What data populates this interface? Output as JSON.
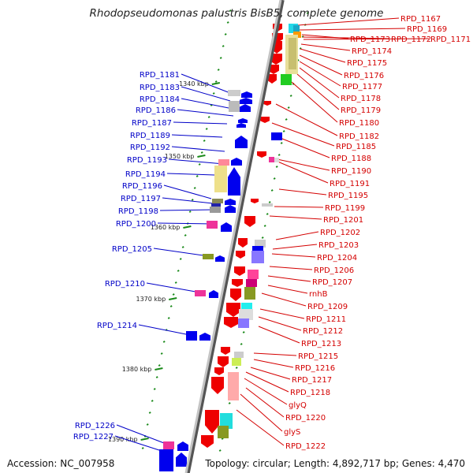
{
  "title": "Rhodopseudomonas palustris BisB5, complete genome",
  "footer": {
    "accession": "Accession: NC_007958",
    "summary": "Topology: circular; Length: 4,892,717 bp; Genes: 4,470"
  },
  "colors": {
    "backbone": "#888888",
    "left_label": "#0000c8",
    "right_label": "#d40000",
    "tick": "#1a8a1a",
    "forward_gene": "#0000ee",
    "reverse_gene": "#ee0000"
  },
  "ticks": [
    "1340 kbp",
    "1350 kbp",
    "1360 kbp",
    "1370 kbp",
    "1380 kbp",
    "1390 kbp"
  ],
  "left_labels": [
    "RPD_1181",
    "RPD_1183",
    "RPD_1184",
    "RPD_1186",
    "RPD_1187",
    "RPD_1189",
    "RPD_1192",
    "RPD_1193",
    "RPD_1194",
    "RPD_1196",
    "RPD_1197",
    "RPD_1198",
    "RPD_1200",
    "RPD_1205",
    "RPD_1210",
    "RPD_1214",
    "RPD_1226",
    "RPD_1227"
  ],
  "right_labels": [
    "RPD_1167",
    "RPD_1169",
    "RPD_1173",
    "RPD_1172",
    "RPD_1171",
    "RPD_1174",
    "RPD_1175",
    "RPD_1176",
    "RPD_1177",
    "RPD_1178",
    "RPD_1179",
    "RPD_1180",
    "RPD_1182",
    "RPD_1185",
    "RPD_1188",
    "RPD_1190",
    "RPD_1191",
    "RPD_1195",
    "RPD_1199",
    "RPD_1201",
    "RPD_1202",
    "RPD_1203",
    "RPD_1204",
    "RPD_1206",
    "RPD_1207",
    "rnhB",
    "RPD_1209",
    "RPD_1211",
    "RPD_1212",
    "RPD_1213",
    "RPD_1215",
    "RPD_1216",
    "RPD_1217",
    "RPD_1218",
    "glyQ",
    "RPD_1220",
    "glyS",
    "RPD_1222"
  ]
}
